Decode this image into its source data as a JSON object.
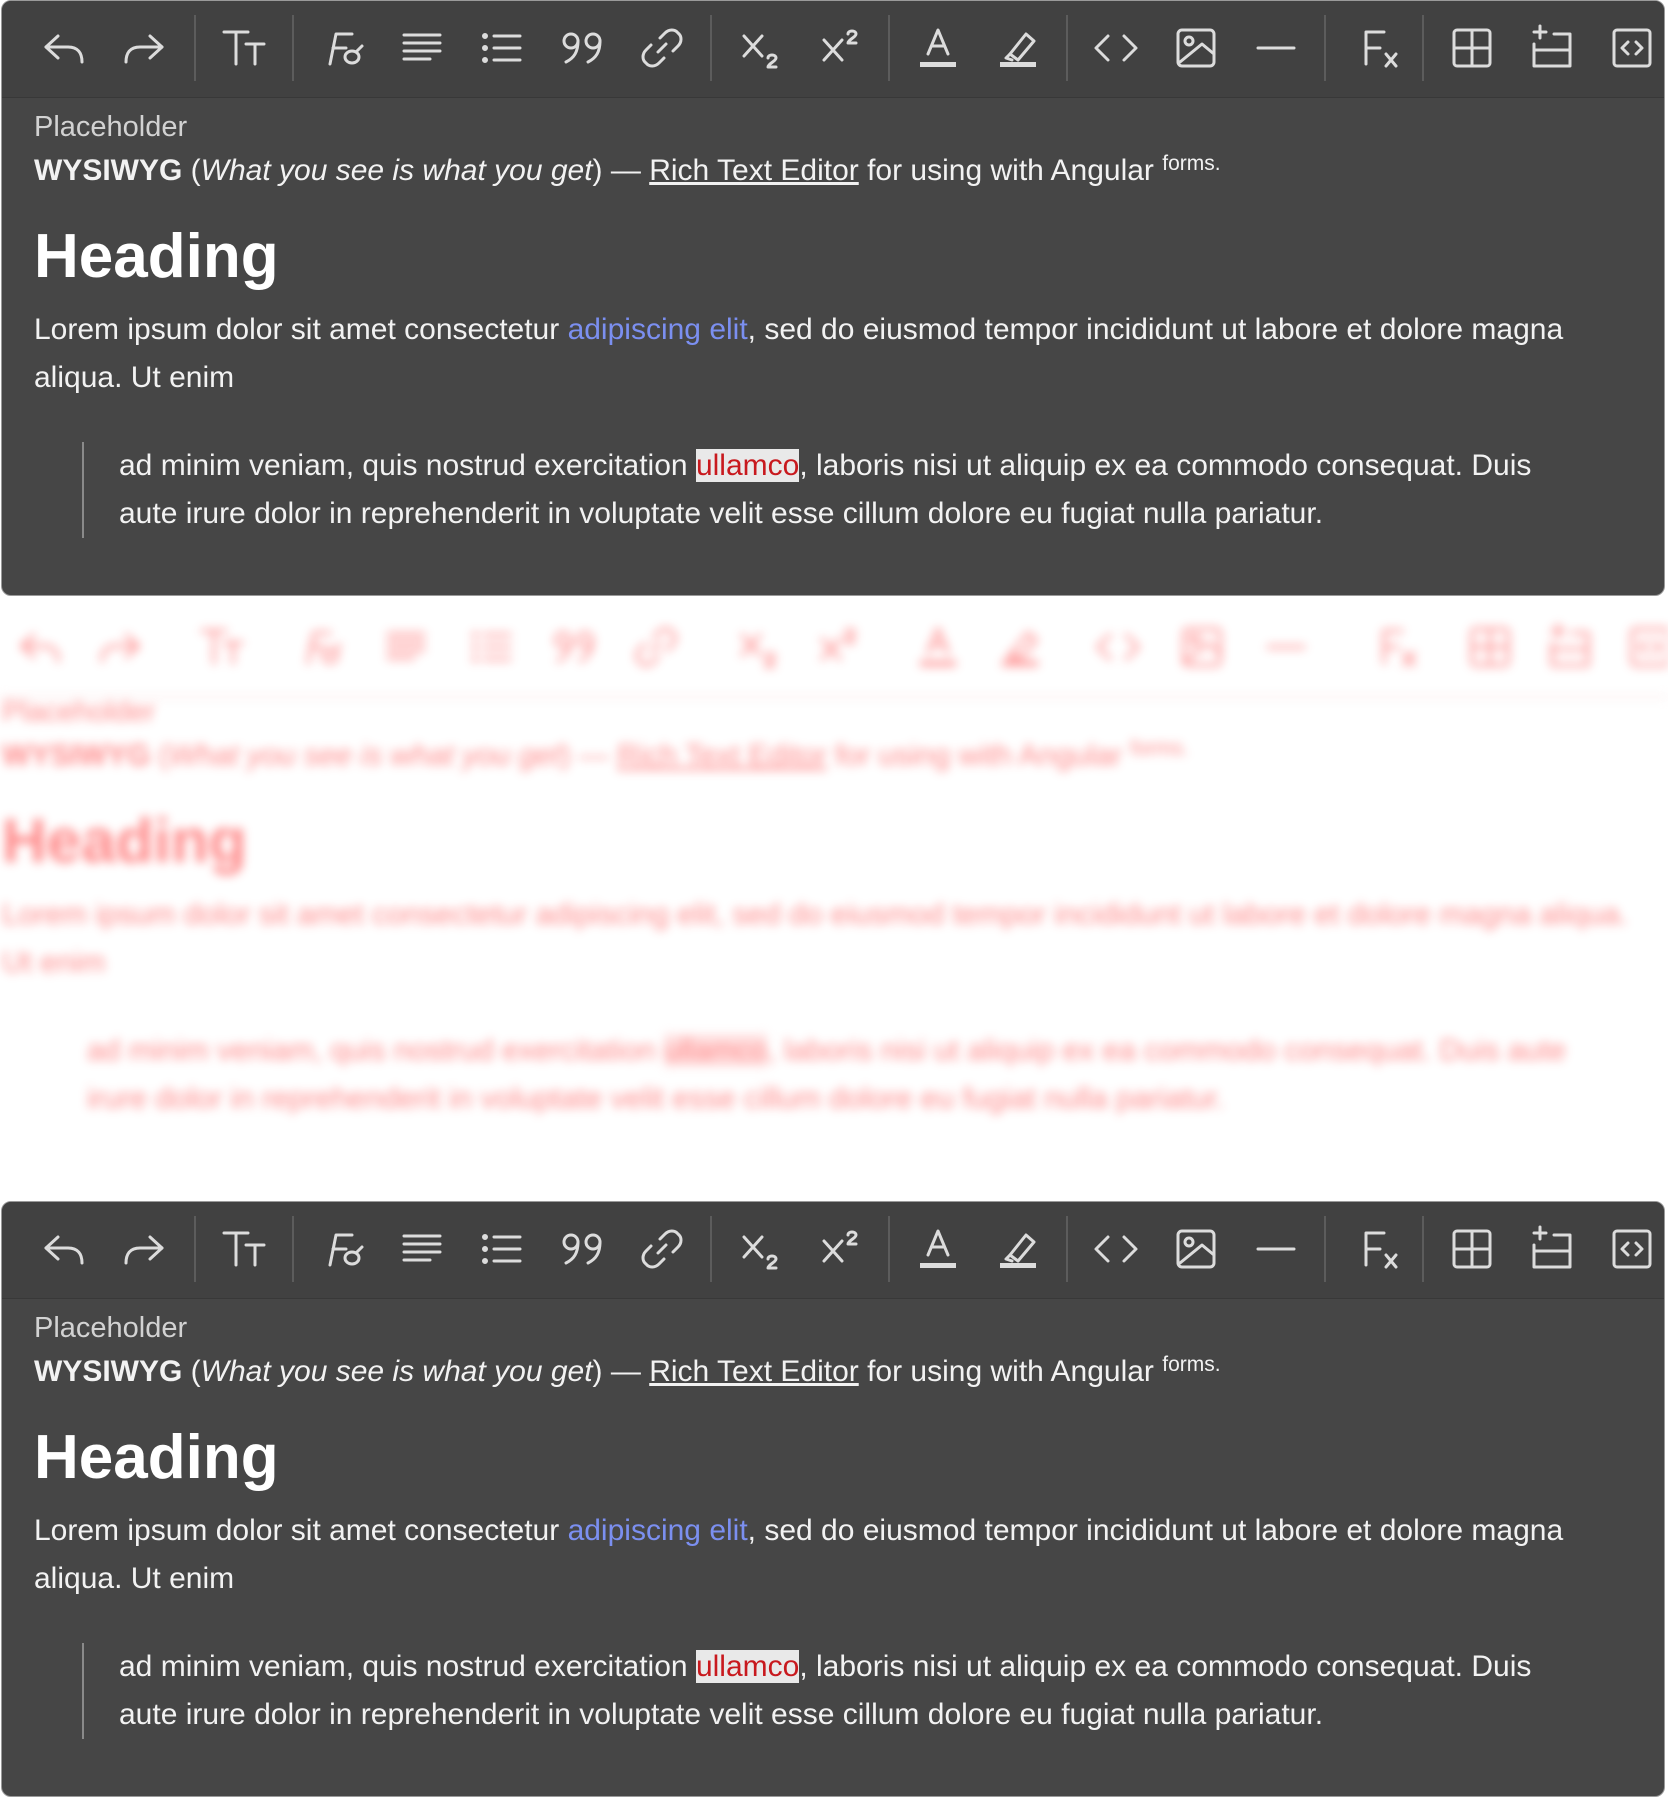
{
  "editor": {
    "placeholder": "Placeholder",
    "intro": {
      "bold": "WYSIWYG",
      "open_paren": " (",
      "italic": "What you see is what you get",
      "close_dash": ") — ",
      "underline": "Rich Text Editor",
      "rest": " for using with Angular ",
      "superscript": "forms."
    },
    "heading": "Heading",
    "paragraph": {
      "before_link": "Lorem ipsum dolor sit amet consectetur ",
      "link": "adipiscing elit",
      "after_link": ", sed do eiusmod tempor incididunt ut labore et dolore magna aliqua. Ut enim"
    },
    "blockquote": {
      "before_highlight": "ad minim veniam, quis nostrud exercitation ",
      "highlight": "ullamco",
      "after_highlight": ", laboris nisi ut aliquip ex ea commodo consequat. Duis aute irure dolor in reprehenderit in voluptate velit esse cillum dolore eu fugiat nulla pariatur."
    },
    "colors": {
      "background": "#464646",
      "link": "#7b8ff0",
      "highlight_text": "#c8191e",
      "highlight_bg": "#e9e9e9",
      "ghost_overlay": "#ff2a2a"
    }
  },
  "toolbar": {
    "buttons": [
      {
        "icon": "undo-icon"
      },
      {
        "icon": "redo-icon"
      },
      {
        "icon": "text-size-icon"
      },
      {
        "icon": "font-style-icon"
      },
      {
        "icon": "align-left-icon"
      },
      {
        "icon": "bullet-list-icon"
      },
      {
        "icon": "blockquote-icon"
      },
      {
        "icon": "link-icon"
      },
      {
        "icon": "subscript-icon"
      },
      {
        "icon": "superscript-icon"
      },
      {
        "icon": "text-color-icon"
      },
      {
        "icon": "highlight-icon"
      },
      {
        "icon": "code-icon"
      },
      {
        "icon": "image-icon"
      },
      {
        "icon": "horizontal-rule-icon"
      },
      {
        "icon": "clear-format-icon"
      },
      {
        "icon": "table-icon"
      },
      {
        "icon": "insert-row-icon"
      },
      {
        "icon": "source-code-icon"
      }
    ]
  }
}
